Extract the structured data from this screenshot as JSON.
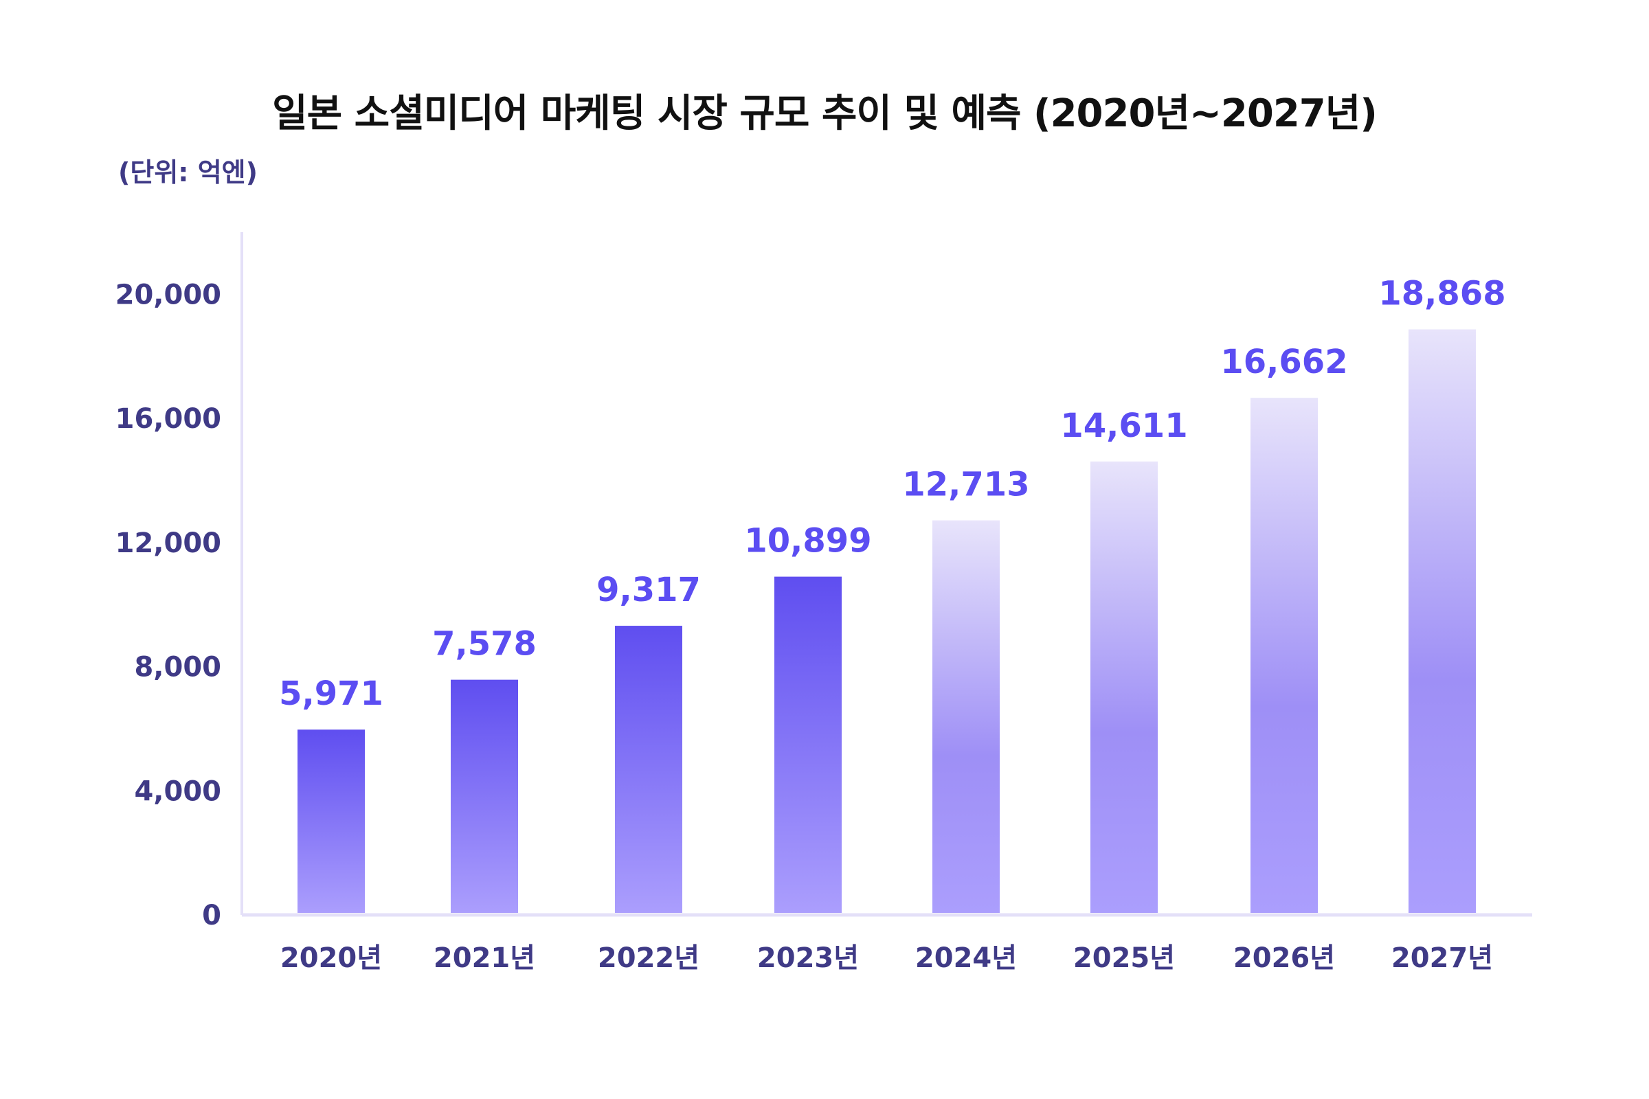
{
  "chart_data": {
    "type": "bar",
    "title": "일본 소셜미디어 마케팅 시장 규모 추이 및 예측 (2020년~2027년)",
    "unit_label": "(단위: 억엔)",
    "categories": [
      "2020년",
      "2021년",
      "2022년",
      "2023년",
      "2024년",
      "2025년",
      "2026년",
      "2027년"
    ],
    "series": [
      {
        "values": [
          5971,
          7578,
          9317,
          10899,
          12713,
          14611,
          16662,
          18868
        ],
        "value_labels": [
          "5,971",
          "7,578",
          "9,317",
          "10,899",
          "12,713",
          "14,611",
          "16,662",
          "18,868"
        ]
      }
    ],
    "forecast_from_index": 4,
    "ylim": [
      0,
      22000
    ],
    "yticks": [
      0,
      4000,
      8000,
      12000,
      16000,
      20000
    ],
    "ytick_labels": [
      "0",
      "4,000",
      "8,000",
      "12,000",
      "16,000",
      "20,000"
    ],
    "grid": false,
    "legend": "none",
    "colors": {
      "actual_top": "#5f4ef0",
      "actual_bottom": "#ab9efd",
      "forecast_top": "#e8e4fb",
      "forecast_mid": "#9e8ff6",
      "forecast_bottom": "#ab9efd",
      "value_label": "#5b4df2",
      "axis": "#e4e0f8",
      "tick_text": "#3f3a86"
    }
  }
}
